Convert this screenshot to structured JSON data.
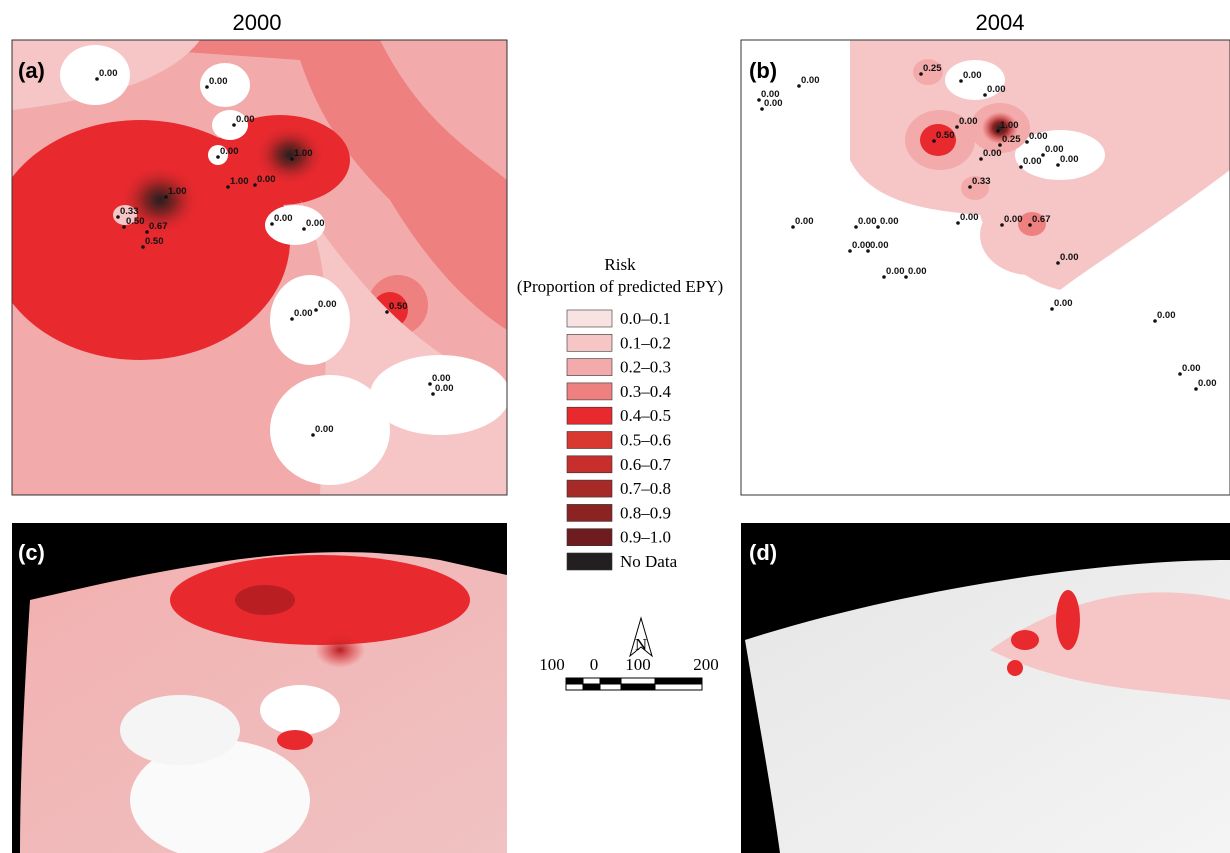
{
  "titles": [
    "2000",
    "2004"
  ],
  "panels": [
    {
      "label": "(a)",
      "points": [
        "0.00",
        "0.00",
        "0.00",
        "0.00",
        "1.00",
        "1.00",
        "1.00",
        "0.00",
        "0.33",
        "0.50",
        "0.67",
        "0.50",
        "0.00",
        "0.00",
        "0.00",
        "0.00",
        "0.50",
        "0.00",
        "0.00",
        "0.00"
      ]
    },
    {
      "label": "(b)",
      "points": [
        "0.25",
        "0.00",
        "0.00",
        "0.00",
        "0.00",
        "0.00",
        "0.00",
        "1.00",
        "0.50",
        "0.25",
        "0.00",
        "0.00",
        "0.00",
        "0.00",
        "0.00",
        "0.33",
        "0.00",
        "0.00",
        "0.00",
        "0.00",
        "0.00",
        "0.67",
        "0.00",
        "0.00",
        "0.00",
        "0.00",
        "0.00",
        "0.00",
        "0.00",
        "0.00",
        "0.00"
      ]
    },
    {
      "label": "(c)"
    },
    {
      "label": "(d)"
    }
  ],
  "legend": {
    "title": "Risk",
    "subtitle": "(Proportion of predicted EPY)",
    "items": [
      {
        "label": "0.0–0.1",
        "color": "#f9e2e2"
      },
      {
        "label": "0.1–0.2",
        "color": "#f6c6c6"
      },
      {
        "label": "0.2–0.3",
        "color": "#f2aaaa"
      },
      {
        "label": "0.3–0.4",
        "color": "#ee8080"
      },
      {
        "label": "0.4–0.5",
        "color": "#e8292e"
      },
      {
        "label": "0.5–0.6",
        "color": "#d8382f"
      },
      {
        "label": "0.6–0.7",
        "color": "#c62f2b"
      },
      {
        "label": "0.7–0.8",
        "color": "#a62a27"
      },
      {
        "label": "0.8–0.9",
        "color": "#8b2323"
      },
      {
        "label": "0.9–1.0",
        "color": "#6e1c1f"
      },
      {
        "label": "No Data",
        "color": "#231f20"
      }
    ]
  },
  "north": "N",
  "scale": [
    "100",
    "0",
    "100",
    "200"
  ]
}
